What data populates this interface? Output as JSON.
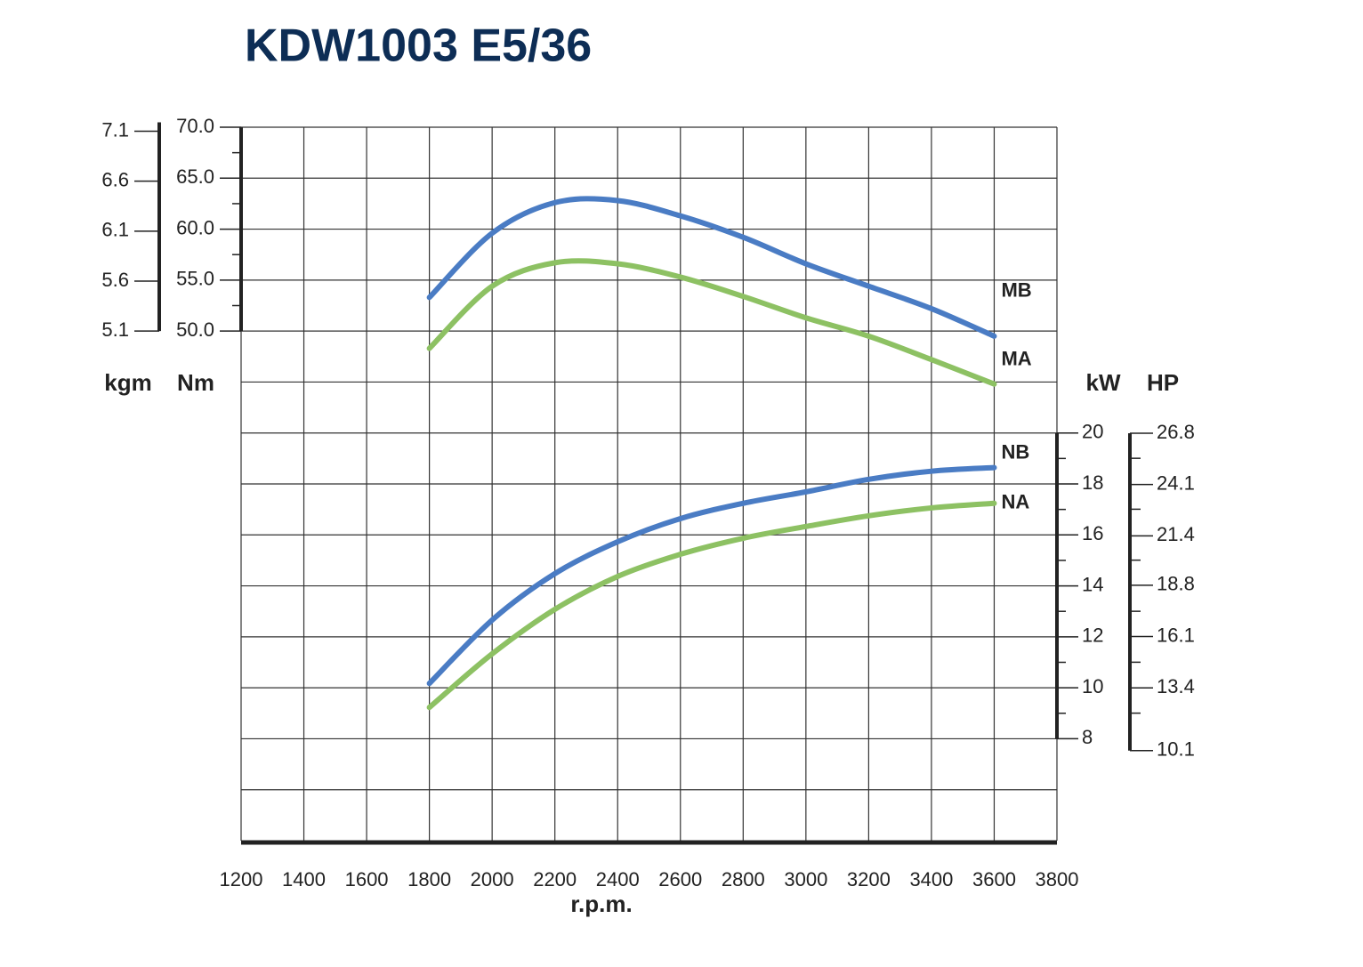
{
  "chart_data": {
    "type": "line",
    "title": "KDW1003 E5/36",
    "xlabel": "r.p.m.",
    "x": [
      1800,
      2000,
      2200,
      2400,
      2600,
      2800,
      3000,
      3200,
      3400,
      3600
    ],
    "xlim": [
      1200,
      3800
    ],
    "xticks": [
      1200,
      1400,
      1600,
      1800,
      2000,
      2200,
      2400,
      2600,
      2800,
      3000,
      3200,
      3400,
      3600,
      3800
    ],
    "ylabel": "Nm",
    "ylim": [
      0,
      70
    ],
    "yticks": [
      {
        "value": 50,
        "label": "50.0"
      },
      {
        "value": 55,
        "label": "55.0"
      },
      {
        "value": 60,
        "label": "60.0"
      },
      {
        "value": 65,
        "label": "65.0"
      },
      {
        "value": 70,
        "label": "70.0"
      }
    ],
    "yminorticks": [
      52.5,
      57.5,
      62.5,
      67.5
    ],
    "ygrid": [
      5,
      10,
      15,
      20,
      25,
      30,
      35,
      40,
      45,
      50,
      55,
      60,
      65,
      70
    ],
    "kgm_axis": {
      "label": "kgm",
      "lim": [
        0,
        7.14
      ],
      "ticks": [
        5.1,
        5.6,
        6.1,
        6.6,
        7.1
      ]
    },
    "y2label": "kW",
    "y2lim": [
      4,
      32
    ],
    "y2ticks": [
      8,
      10,
      12,
      14,
      16,
      18,
      20
    ],
    "y2minorticks": [
      9,
      11,
      13,
      15,
      17,
      19
    ],
    "hp_axis": {
      "label": "HP",
      "lim": [
        5.36,
        42.9
      ],
      "ticks": [
        10.1,
        13.4,
        16.1,
        18.8,
        21.4,
        24.1,
        26.8
      ],
      "minorticks": [
        12.07,
        14.75,
        17.43,
        20.12,
        22.8,
        25.48
      ]
    },
    "series": [
      {
        "name": "MB",
        "color": "#4a7cc4",
        "axis": "y",
        "values": [
          53.3,
          59.6,
          62.6,
          62.8,
          61.3,
          59.2,
          56.6,
          54.4,
          52.2,
          49.5
        ]
      },
      {
        "name": "MA",
        "color": "#8dc163",
        "axis": "y",
        "values": [
          48.3,
          54.4,
          56.7,
          56.6,
          55.3,
          53.4,
          51.3,
          49.5,
          47.2,
          44.8
        ]
      },
      {
        "name": "NB",
        "color": "#4a7cc4",
        "axis": "y2",
        "values": [
          10.17,
          12.66,
          14.48,
          15.73,
          16.64,
          17.24,
          17.69,
          18.18,
          18.5,
          18.64
        ]
      },
      {
        "name": "NA",
        "color": "#8dc163",
        "axis": "y2",
        "values": [
          9.23,
          11.33,
          13.08,
          14.37,
          15.24,
          15.87,
          16.33,
          16.75,
          17.06,
          17.24
        ]
      }
    ]
  }
}
